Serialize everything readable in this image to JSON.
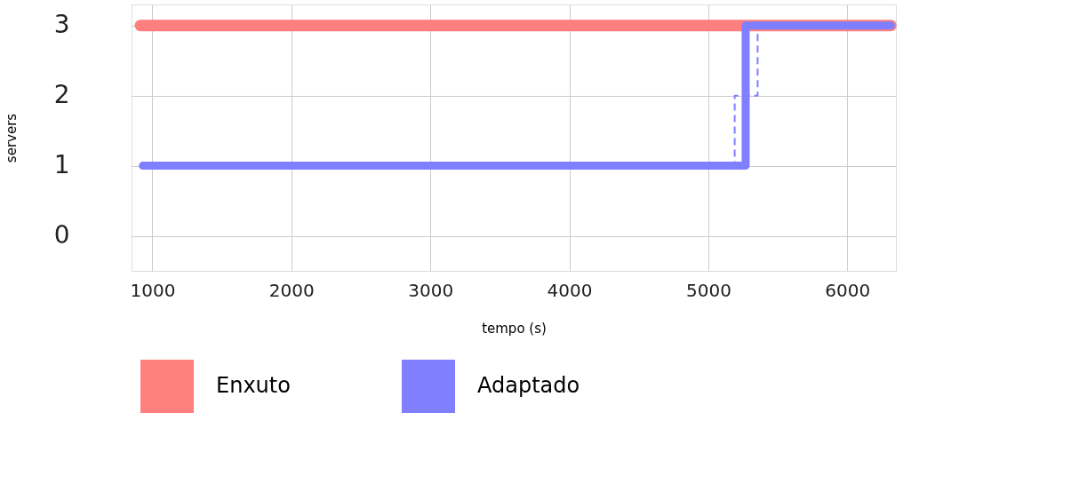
{
  "chart_data": {
    "type": "line",
    "xlabel": "tempo (s)",
    "ylabel": "servers",
    "xlim": [
      850,
      6350
    ],
    "ylim": [
      -0.5,
      3.3
    ],
    "xticks": [
      1000,
      2000,
      3000,
      4000,
      5000,
      6000
    ],
    "yticks": [
      0,
      1,
      2,
      3
    ],
    "grid": true,
    "legend": "bottom",
    "marker": "none",
    "series": [
      {
        "name": "Enxuto",
        "color": "#ff7f7f",
        "x": [
          914,
          6314
        ],
        "values": [
          3,
          3
        ]
      },
      {
        "name": "Adaptado",
        "color": "#7f7fff",
        "x": [
          931,
          5269,
          5269,
          6314
        ],
        "values": [
          1,
          1,
          3,
          3
        ]
      },
      {
        "type": "step",
        "color": "#7f7fff",
        "line_style": "dashed",
        "x": [
          931,
          5190,
          5355,
          6314
        ],
        "values": [
          1,
          2,
          3,
          3
        ]
      }
    ]
  }
}
